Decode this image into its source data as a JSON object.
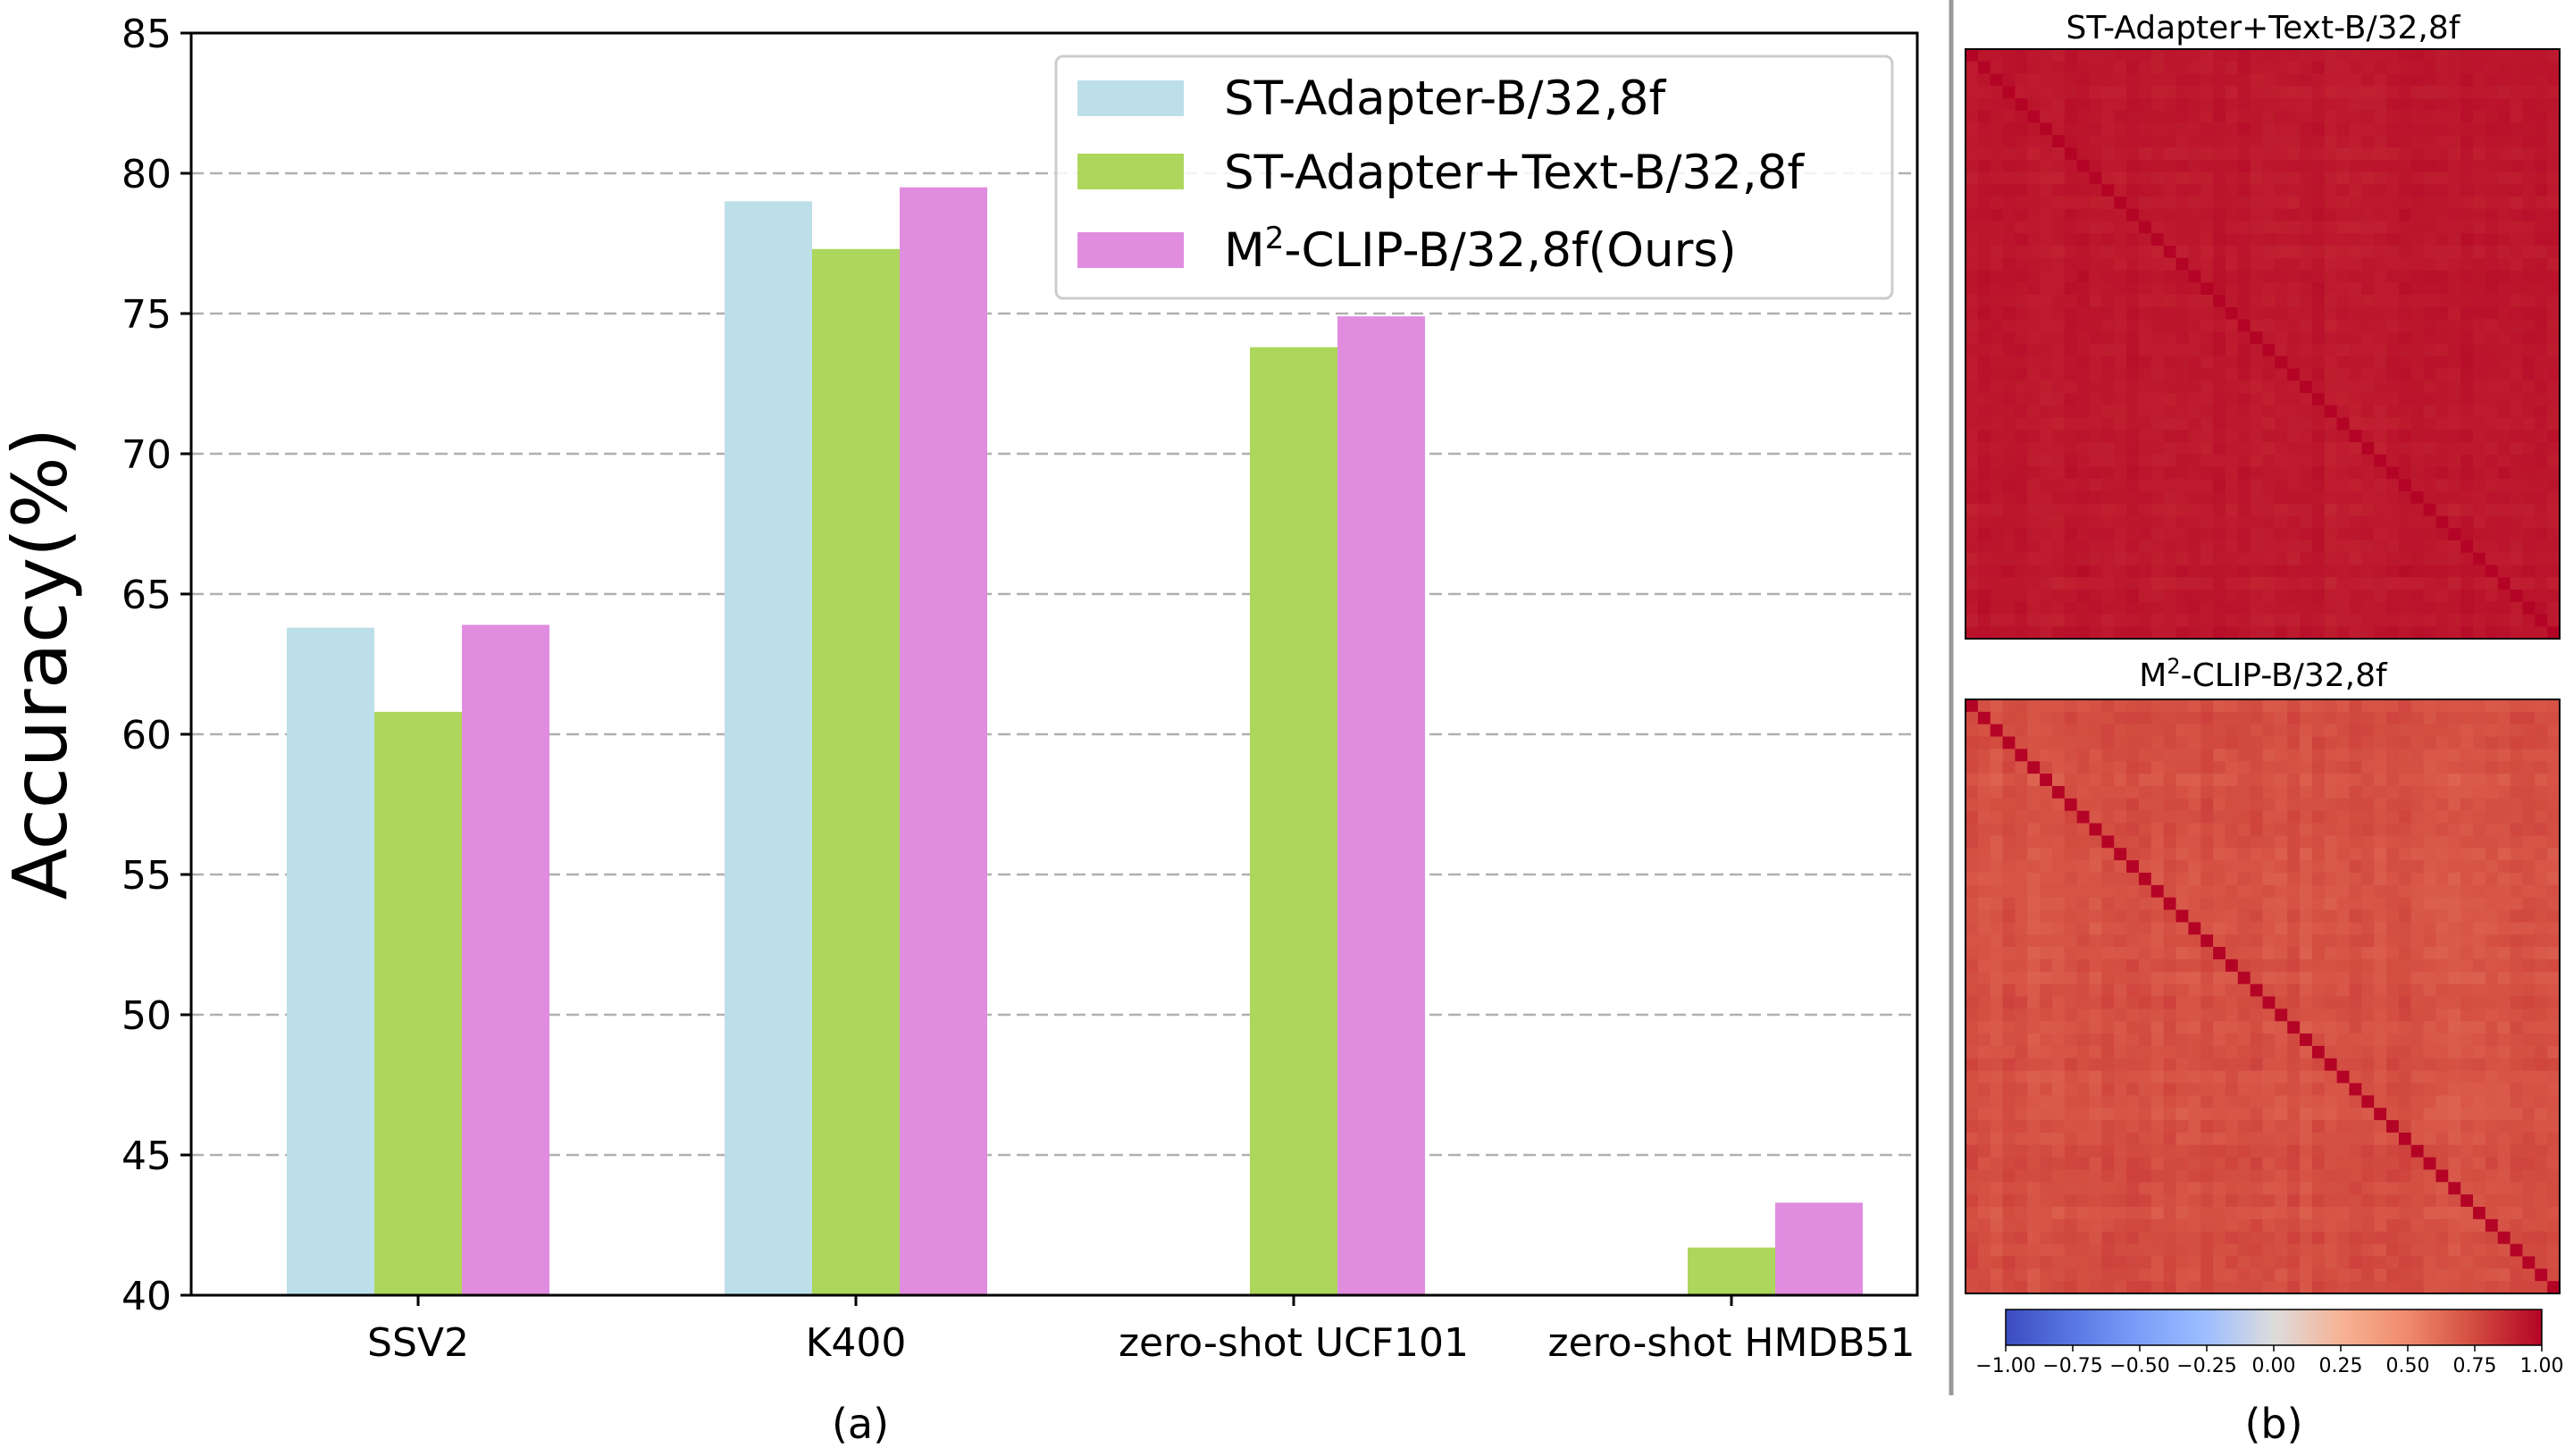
{
  "chart_data": [
    {
      "type": "bar",
      "panel_label": "(a)",
      "ylabel": "Accuracy(%)",
      "xlabel": "",
      "ylim": [
        40,
        85
      ],
      "yticks": [
        "40",
        "45",
        "50",
        "55",
        "60",
        "65",
        "70",
        "75",
        "80",
        "85"
      ],
      "grid": "horizontal dashed",
      "legend_position": "top-right",
      "categories": [
        "SSV2",
        "K400",
        "zero-shot UCF101",
        "zero-shot HMDB51"
      ],
      "series": [
        {
          "name": "ST-Adapter-B/32,8f",
          "color": "#bddfea",
          "values": [
            63.8,
            79.0,
            null,
            null
          ]
        },
        {
          "name": "ST-Adapter+Text-B/32,8f",
          "color": "#acd65c",
          "values": [
            60.8,
            77.3,
            73.8,
            41.7
          ]
        },
        {
          "name_main": "M",
          "name_sup": "2",
          "name_rest": "-CLIP-B/32,8f(Ours)",
          "color": "#e08ddf",
          "values": [
            63.9,
            79.5,
            74.9,
            43.3
          ]
        }
      ]
    },
    {
      "type": "heatmap",
      "panel_label": "(b)",
      "colormap": "coolwarm",
      "vmin": -1.0,
      "vmax": 1.0,
      "colorbar_ticks": [
        "−1.00",
        "−0.75",
        "−0.50",
        "−0.25",
        "0.00",
        "0.25",
        "0.50",
        "0.75",
        "1.00"
      ],
      "matrices": [
        {
          "title": "ST-Adapter+Text-B/32,8f",
          "size": 48,
          "diagonal": 1.0,
          "off_diagonal_mean": 0.93,
          "off_diagonal_spread": 0.03
        },
        {
          "title_main": "M",
          "title_sup": "2",
          "title_rest": "-CLIP-B/32,8f",
          "size": 48,
          "diagonal": 1.0,
          "off_diagonal_mean": 0.72,
          "off_diagonal_spread": 0.05
        }
      ]
    }
  ]
}
